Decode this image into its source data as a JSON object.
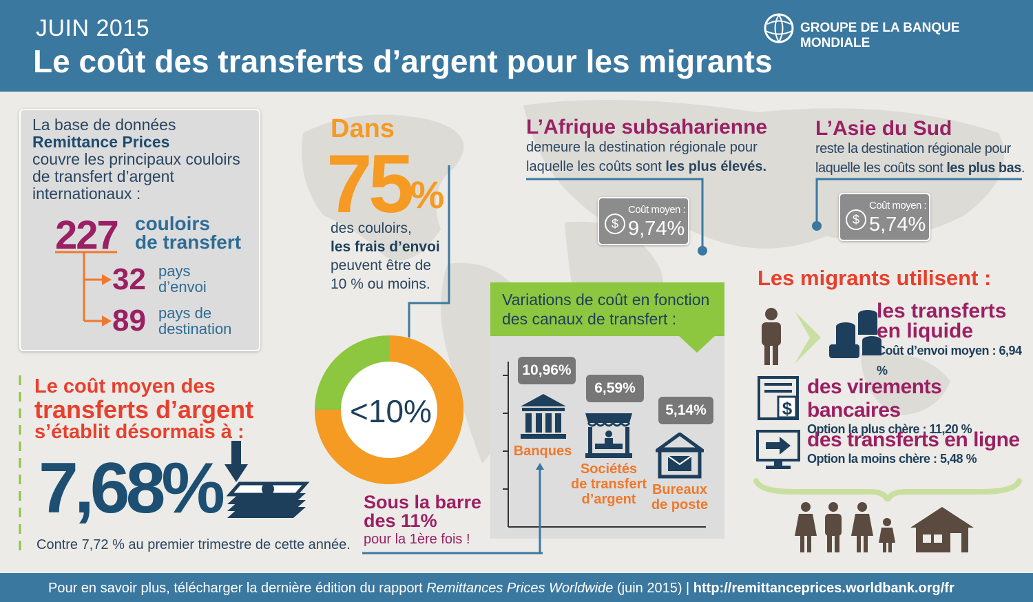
{
  "header": {
    "date": "JUIN 2015",
    "title": "Le coût des transferts d’argent pour les migrants",
    "organization": "GROUPE DE LA BANQUE MONDIALE"
  },
  "database": {
    "line1": "La base de données",
    "name": "Remittance Prices",
    "line3": "couvre les principaux couloirs",
    "line4": "de transfert d’argent",
    "line5": "internationaux :",
    "corridors_count": "227",
    "corridors_label_1": "couloirs",
    "corridors_label_2": "de transfert",
    "sending_count": "32",
    "sending_label_1": "pays",
    "sending_label_2": "d’envoi",
    "dest_count": "89",
    "dest_label_1": "pays de",
    "dest_label_2": "destination"
  },
  "average_cost": {
    "line1": "Le coût moyen des",
    "line2": "transferts d’argent",
    "line3": "s’établit désormais à :",
    "value": "7,68%",
    "comparison": "Contre 7,72 % au premier trimestre de cette année."
  },
  "seventy_five": {
    "dans": "Dans",
    "value": "75",
    "percent": "%",
    "line1": "des couloirs,",
    "line2": "les frais d’envoi",
    "line3": "peuvent être de",
    "line4": "10 % ou moins.",
    "donut_label": "<10%",
    "donut_share_percent": 75
  },
  "below_bar": {
    "line1": "Sous la barre",
    "line2": "des 11%",
    "line3": "pour la 1ère fois !"
  },
  "africa": {
    "title": "L’Afrique subsaharienne",
    "line1": "demeure la destination régionale pour",
    "line2_pre": "laquelle les coûts sont ",
    "line2_bold": "les plus élevés.",
    "cost_label": "Coût moyen :",
    "cost_value": "9,74%"
  },
  "asia": {
    "title": "L’Asie du Sud",
    "line1": "reste la destination régionale pour",
    "line2_pre": "laquelle les coûts sont ",
    "line2_bold": "les plus bas",
    "line2_end": ".",
    "cost_label": "Coût moyen :",
    "cost_value": "5,74%"
  },
  "channels": {
    "title_1": "Variations de coût en fonction",
    "title_2": "des canaux de transfert :",
    "items": [
      {
        "label_1": "Banques",
        "label_2": "",
        "label_3": "",
        "value": "10,96%"
      },
      {
        "label_1": "Sociétés",
        "label_2": "de transfert",
        "label_3": "d’argent",
        "value": "6,59%"
      },
      {
        "label_1": "Bureaux",
        "label_2": "de poste",
        "label_3": "",
        "value": "5,14%"
      }
    ]
  },
  "migrants": {
    "title": "Les migrants utilisent :",
    "cash_1": "les transferts",
    "cash_2": "en liquide",
    "cash_note_pre": "Coût d’envoi moyen : ",
    "cash_note_val": "6,94 %",
    "bank": "des virements bancaires",
    "bank_note_pre": "Option la plus chère : ",
    "bank_note_val": "11,20 %",
    "online": "des transferts en ligne",
    "online_note_pre": "Option la moins chère : ",
    "online_note_val": "5,48 %"
  },
  "footer": {
    "text_pre": "Pour en savoir plus, télécharger la dernière édition du rapport ",
    "report": "Remittances Prices Worldwide",
    "text_post": " (juin 2015)  |  ",
    "url": "http://remittanceprices.worldbank.org/fr"
  },
  "colors": {
    "header_blue": "#3b78a0",
    "orange": "#f59a23",
    "green": "#8dc63f",
    "magenta": "#9b2063",
    "red": "#e8402e",
    "navy": "#1d4f73"
  }
}
